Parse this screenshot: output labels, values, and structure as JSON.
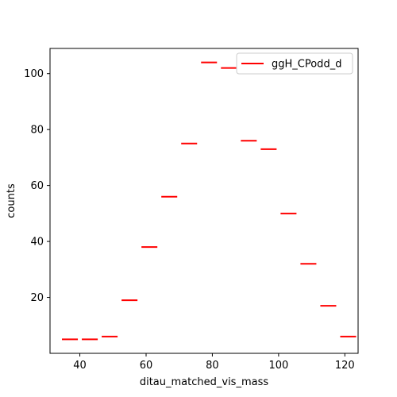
{
  "chart_data": {
    "type": "line",
    "style": "horizontal-step-segments",
    "xlabel": "ditau_matched_vis_mass",
    "ylabel": "counts",
    "xlim": [
      31,
      124
    ],
    "ylim": [
      0,
      109
    ],
    "x_ticks": [
      40,
      60,
      80,
      100,
      120
    ],
    "y_ticks": [
      20,
      40,
      60,
      80,
      100
    ],
    "grid": false,
    "legend_position": "top-right",
    "series": [
      {
        "name": "ggH_CPodd_d",
        "color": "#ff0000",
        "bins": [
          {
            "x0": 34,
            "x1": 40,
            "y": 5
          },
          {
            "x0": 40,
            "x1": 46,
            "y": 5
          },
          {
            "x0": 46,
            "x1": 52,
            "y": 6
          },
          {
            "x0": 52,
            "x1": 58,
            "y": 19
          },
          {
            "x0": 58,
            "x1": 64,
            "y": 38
          },
          {
            "x0": 64,
            "x1": 70,
            "y": 56
          },
          {
            "x0": 70,
            "x1": 76,
            "y": 75
          },
          {
            "x0": 76,
            "x1": 82,
            "y": 104
          },
          {
            "x0": 82,
            "x1": 88,
            "y": 102
          },
          {
            "x0": 88,
            "x1": 94,
            "y": 76
          },
          {
            "x0": 94,
            "x1": 100,
            "y": 73
          },
          {
            "x0": 100,
            "x1": 106,
            "y": 50
          },
          {
            "x0": 106,
            "x1": 112,
            "y": 32
          },
          {
            "x0": 112,
            "x1": 118,
            "y": 17
          },
          {
            "x0": 118,
            "x1": 124,
            "y": 6
          }
        ]
      }
    ]
  }
}
